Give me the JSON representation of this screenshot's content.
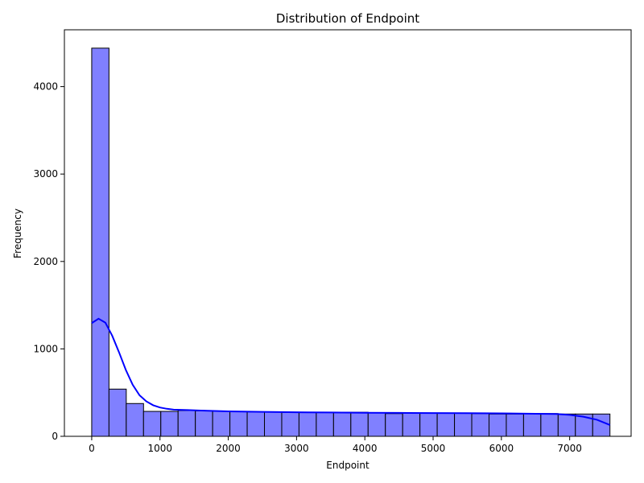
{
  "chart_data": {
    "type": "bar",
    "title": "Distribution of Endpoint",
    "xlabel": "Endpoint",
    "ylabel": "Frequency",
    "xlim": [
      -400,
      7900
    ],
    "ylim": [
      0,
      4650
    ],
    "xticks": [
      0,
      1000,
      2000,
      3000,
      4000,
      5000,
      6000,
      7000
    ],
    "yticks": [
      0,
      1000,
      2000,
      3000,
      4000
    ],
    "grid": false,
    "legend": "none",
    "bins": {
      "start": 0,
      "width": 253,
      "counts": [
        4440,
        540,
        375,
        285,
        285,
        295,
        290,
        290,
        285,
        280,
        280,
        275,
        275,
        275,
        275,
        275,
        270,
        260,
        265,
        265,
        265,
        265,
        260,
        255,
        255,
        260,
        260,
        255,
        255,
        255
      ]
    },
    "kde": {
      "x": [
        0,
        100,
        200,
        300,
        400,
        500,
        600,
        700,
        800,
        900,
        1000,
        1100,
        1200,
        1400,
        1600,
        1800,
        2000,
        2500,
        3000,
        3500,
        4000,
        4500,
        5000,
        5500,
        6000,
        6500,
        6800,
        7000,
        7200,
        7400,
        7590
      ],
      "y": [
        1295,
        1345,
        1300,
        1150,
        960,
        760,
        590,
        470,
        400,
        355,
        330,
        315,
        305,
        300,
        295,
        290,
        285,
        280,
        275,
        273,
        270,
        268,
        266,
        264,
        262,
        258,
        255,
        245,
        225,
        190,
        130
      ]
    },
    "colors": {
      "bar_fill": "#8080ff",
      "bar_edge": "#000000",
      "kde_line": "#0000ff"
    }
  }
}
